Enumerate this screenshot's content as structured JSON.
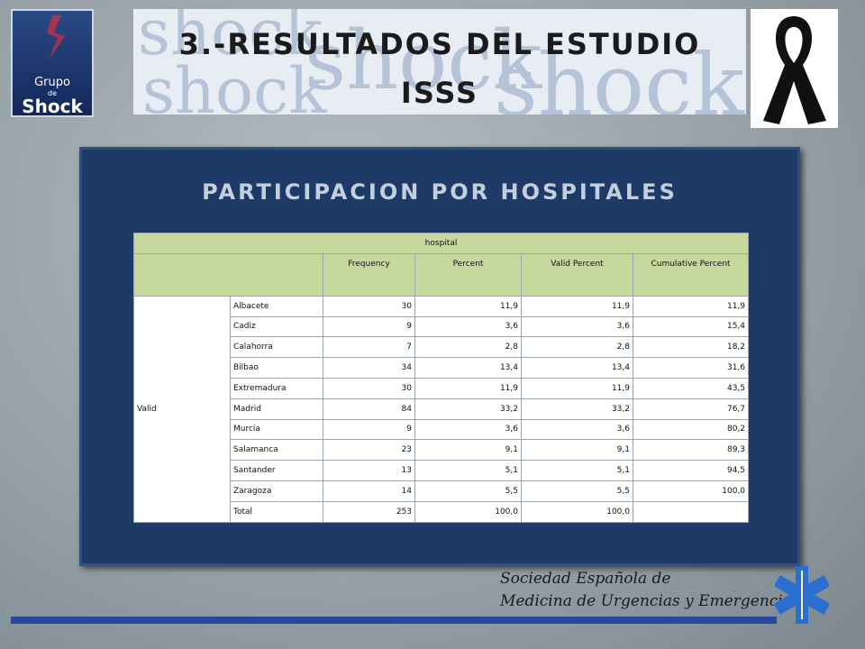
{
  "logo": {
    "lines": [
      "Grupo",
      "de",
      "Shock"
    ]
  },
  "header": {
    "title_lines": [
      "3.-RESULTADOS DEL ESTUDIO",
      "ISSS"
    ]
  },
  "panel": {
    "title": "PARTICIPACION POR HOSPITALES"
  },
  "table": {
    "caption": "hospital",
    "columns": [
      "Frequency",
      "Percent",
      "Valid Percent",
      "Cumulative Percent"
    ],
    "group": "Valid",
    "rows": [
      [
        "Albacete",
        30,
        "11,9",
        "11,9",
        "11,9"
      ],
      [
        "Cadiz",
        9,
        "3,6",
        "3,6",
        "15,4"
      ],
      [
        "Calahorra",
        7,
        "2,8",
        "2,8",
        "18,2"
      ],
      [
        "Bilbao",
        34,
        "13,4",
        "13,4",
        "31,6"
      ],
      [
        "Extremadura",
        30,
        "11,9",
        "11,9",
        "43,5"
      ],
      [
        "Madrid",
        84,
        "33,2",
        "33,2",
        "76,7"
      ],
      [
        "Murcia",
        9,
        "3,6",
        "3,6",
        "80,2"
      ],
      [
        "Salamanca",
        23,
        "9,1",
        "9,1",
        "89,3"
      ],
      [
        "Santander",
        13,
        "5,1",
        "5,1",
        "94,5"
      ],
      [
        "Zaragoza",
        14,
        "5,5",
        "5,5",
        "100,0"
      ],
      [
        "Total",
        253,
        "100,0",
        "100,0"
      ]
    ]
  },
  "footer": {
    "lines": [
      "Sociedad Española de",
      "Medicina de Urgencias y Emergencias"
    ]
  }
}
